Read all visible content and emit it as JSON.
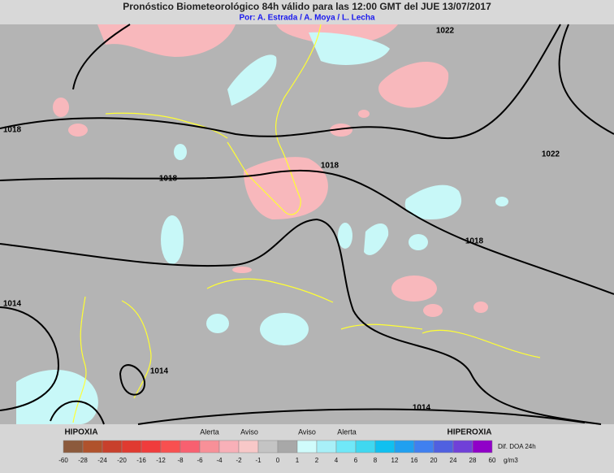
{
  "header": {
    "title": "Pronóstico Biometeorológico 84h  válido para las 12:00 GMT del JUE 13/07/2017",
    "subtitle": "Por: A. Estrada / A. Moya / L. Lecha"
  },
  "map": {
    "isobar_labels": [
      "1022",
      "1018",
      "1022",
      "1018",
      "1018",
      "1018",
      "1014",
      "1014",
      "1014"
    ]
  },
  "legend": {
    "left_label": "HIPOXIA",
    "right_label": "HIPEROXIA",
    "level_labels": [
      "Alerta",
      "Aviso",
      "Aviso",
      "Alerta"
    ],
    "scale_ticks": [
      -60,
      -28,
      -24,
      -20,
      -16,
      -12,
      -8,
      -6,
      -4,
      -2,
      -1,
      0,
      1,
      2,
      4,
      6,
      8,
      12,
      16,
      20,
      24,
      28,
      60
    ],
    "colors": [
      "#8c5a3c",
      "#b0522c",
      "#c8402c",
      "#e03a30",
      "#f03c3c",
      "#f85050",
      "#f86070",
      "#f89098",
      "#f8b0b8",
      "#f8c8c8",
      "#c4c4c4",
      "#a8a8a8",
      "#d0fcfc",
      "#a8f0f8",
      "#70e8f8",
      "#40d8f0",
      "#10c0f0",
      "#20a0f0",
      "#4080f0",
      "#5060e0",
      "#7040d8",
      "#9000c8"
    ],
    "variable": "Dif. DOA 24h",
    "unit": "g/m3"
  }
}
